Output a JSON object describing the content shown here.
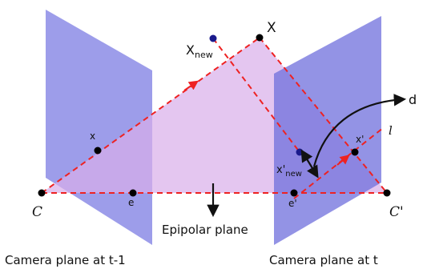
{
  "colors": {
    "plane_left": "#8c8ce6",
    "plane_right": "#7c7ce0",
    "epipolar_plane": "#dcb6ea",
    "dashed_line": "#ee2222",
    "point": "#000000",
    "point_new": "#1a1a8c",
    "arrow": "#111111"
  },
  "labels": {
    "X": "X",
    "X_new_base": "X",
    "X_new_sub": "new",
    "x": "x",
    "x_prime": "x'",
    "x_prime_new_base": "x'",
    "x_prime_new_sub": "new",
    "e": "e",
    "e_prime": "e'",
    "C": "C",
    "C_prime": "C'",
    "l": "l",
    "d": "d",
    "epipolar_plane": "Epipolar plane",
    "camera_left": "Camera plane at t-1",
    "camera_right": "Camera plane at t"
  }
}
